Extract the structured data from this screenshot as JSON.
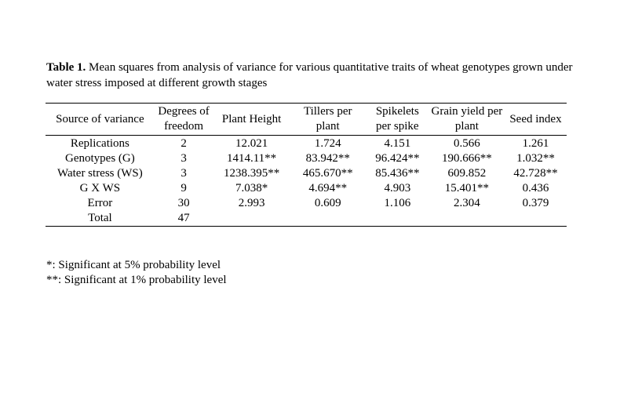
{
  "caption": {
    "label": "Table 1.",
    "text": " Mean squares from analysis of variance for various quantitative traits of wheat genotypes grown under water stress imposed at different growth stages"
  },
  "table": {
    "headers": {
      "source": "Source of variance",
      "df": "Degrees of freedom",
      "plant_height": "Plant Height",
      "tillers": "Tillers per plant",
      "spikelets": "Spikelets per spike",
      "grain_yield": "Grain yield per plant",
      "seed_index": "Seed index"
    },
    "rows": [
      {
        "source": "Replications",
        "df": "2",
        "plant_height": "12.021",
        "tillers": "1.724",
        "spikelets": "4.151",
        "grain_yield": "0.566",
        "seed_index": "1.261"
      },
      {
        "source": "Genotypes (G)",
        "df": "3",
        "plant_height": "1414.11**",
        "tillers": "83.942**",
        "spikelets": "96.424**",
        "grain_yield": "190.666**",
        "seed_index": "1.032**"
      },
      {
        "source": "Water stress (WS)",
        "df": "3",
        "plant_height": "1238.395**",
        "tillers": "465.670**",
        "spikelets": "85.436**",
        "grain_yield": "609.852",
        "seed_index": "42.728**"
      },
      {
        "source": "G X WS",
        "df": "9",
        "plant_height": "7.038*",
        "tillers": "4.694**",
        "spikelets": "4.903",
        "grain_yield": "15.401**",
        "seed_index": "0.436"
      },
      {
        "source": "Error",
        "df": "30",
        "plant_height": "2.993",
        "tillers": "0.609",
        "spikelets": "1.106",
        "grain_yield": "2.304",
        "seed_index": "0.379"
      },
      {
        "source": "Total",
        "df": "47",
        "plant_height": "",
        "tillers": "",
        "spikelets": "",
        "grain_yield": "",
        "seed_index": ""
      }
    ]
  },
  "footnotes": [
    "*: Significant at 5%  probability level",
    "**: Significant at 1%  probability level"
  ]
}
